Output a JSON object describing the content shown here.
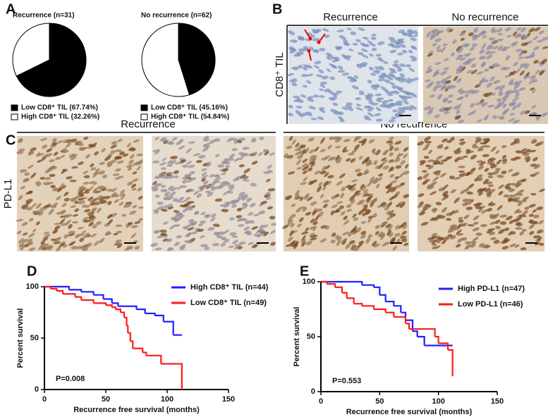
{
  "figure": {
    "panels": [
      "A",
      "B",
      "C",
      "D",
      "E"
    ],
    "b_headers": [
      "Recurrence",
      "No recurrence"
    ],
    "b_ylabel": "CD8⁺ TIL",
    "c_headers": [
      "Recurrence",
      "No recurrence"
    ],
    "c_ylabel": "PD-L1"
  },
  "chart_data": [
    {
      "type": "pie",
      "title": "Recurrence (n=31)",
      "categories": [
        "Low CD8⁺ TIL (67.74%)",
        "High CD8⁺ TIL (32.26%)"
      ],
      "values": [
        67.74,
        32.26
      ],
      "colors": [
        "#000000",
        "#ffffff"
      ]
    },
    {
      "type": "pie",
      "title": "No recurrence (n=62)",
      "categories": [
        "Low CD8⁺ TIL (45.16%)",
        "High CD8⁺ TIL (54.84%)"
      ],
      "values": [
        45.16,
        54.84
      ],
      "colors": [
        "#000000",
        "#ffffff"
      ]
    },
    {
      "type": "step",
      "xlabel": "Recurrence free survival (months)",
      "ylabel": "Percent survival",
      "annotation": "P=0.008",
      "xlim": [
        0,
        150
      ],
      "xticks": [
        0,
        50,
        100,
        150
      ],
      "ylim": [
        0,
        100
      ],
      "yticks": [
        0,
        50,
        100
      ],
      "series": [
        {
          "name": "High CD8⁺ TIL (n=44)",
          "color": "#1f1fff",
          "x": [
            0,
            20,
            30,
            40,
            48,
            55,
            60,
            75,
            82,
            90,
            97,
            105,
            112
          ],
          "values": [
            100,
            97,
            95,
            92,
            88,
            84,
            81,
            78,
            74,
            72,
            66,
            53,
            53
          ]
        },
        {
          "name": "Low CD8⁺ TIL (n=49)",
          "color": "#ff1a1a",
          "x": [
            0,
            5,
            10,
            15,
            25,
            30,
            40,
            50,
            55,
            58,
            62,
            65,
            67,
            68,
            70,
            72,
            80,
            83,
            95,
            110,
            112
          ],
          "values": [
            100,
            98,
            96,
            93,
            90,
            87,
            84,
            82,
            80,
            78,
            75,
            70,
            62,
            55,
            47,
            40,
            36,
            33,
            25,
            25,
            0
          ]
        }
      ]
    },
    {
      "type": "step",
      "xlabel": "Recurrence free survival (months)",
      "ylabel": "Percent survival",
      "annotation": "P=0.553",
      "xlim": [
        0,
        150
      ],
      "xticks": [
        0,
        50,
        100,
        150
      ],
      "ylim": [
        0,
        100
      ],
      "yticks": [
        0,
        50,
        100
      ],
      "series": [
        {
          "name": "High PD-L1 (n=47)",
          "color": "#1f1fff",
          "x": [
            0,
            30,
            35,
            45,
            50,
            55,
            62,
            68,
            72,
            78,
            82,
            88,
            112
          ],
          "values": [
            100,
            100,
            97,
            95,
            88,
            82,
            78,
            72,
            65,
            55,
            50,
            42,
            42
          ]
        },
        {
          "name": "Low PD-L1 (n=46)",
          "color": "#ff1a1a",
          "x": [
            0,
            5,
            12,
            18,
            22,
            28,
            35,
            45,
            55,
            62,
            72,
            75,
            90,
            97,
            100,
            108,
            112
          ],
          "values": [
            100,
            98,
            95,
            90,
            85,
            80,
            78,
            75,
            72,
            68,
            62,
            57,
            57,
            50,
            44,
            38,
            14
          ]
        }
      ]
    }
  ]
}
